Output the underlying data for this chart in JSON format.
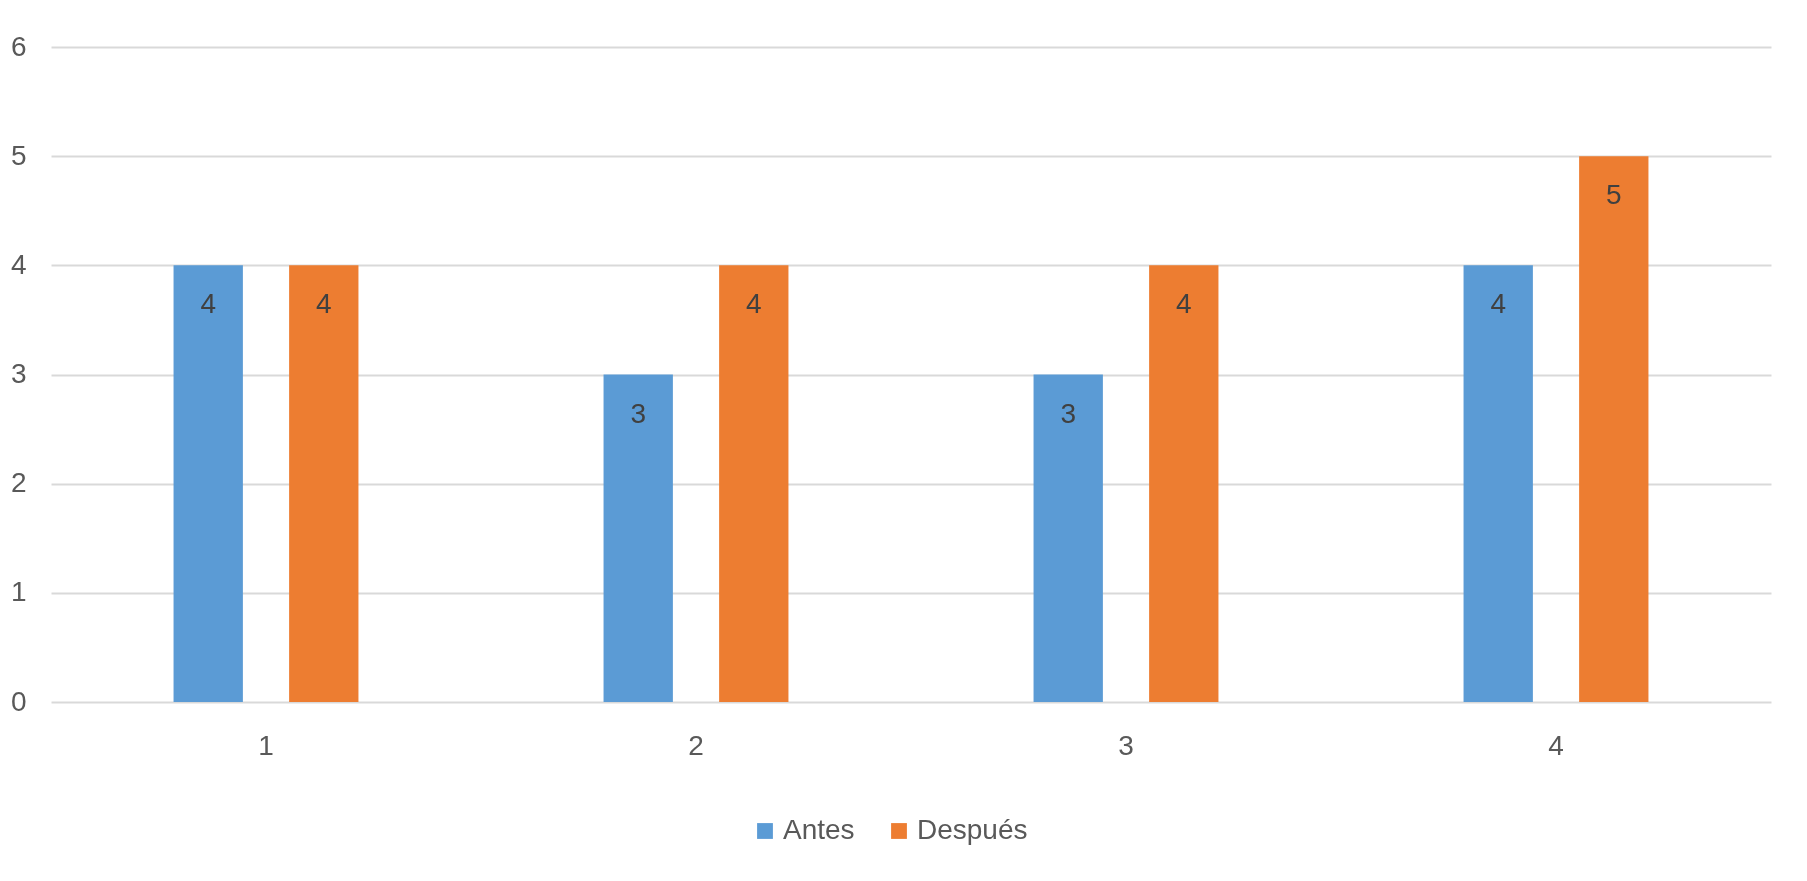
{
  "chart_data": {
    "type": "bar",
    "categories": [
      "1",
      "2",
      "3",
      "4"
    ],
    "series": [
      {
        "name": "Antes",
        "color": "#5b9bd5",
        "values": [
          4,
          3,
          3,
          4
        ]
      },
      {
        "name": "Después",
        "color": "#ed7d31",
        "values": [
          4,
          4,
          4,
          5
        ]
      }
    ],
    "ylim": [
      0,
      6
    ],
    "yticks": [
      0,
      1,
      2,
      3,
      4,
      5,
      6
    ],
    "grid": "y",
    "legend": "bottom",
    "data_labels": true
  }
}
